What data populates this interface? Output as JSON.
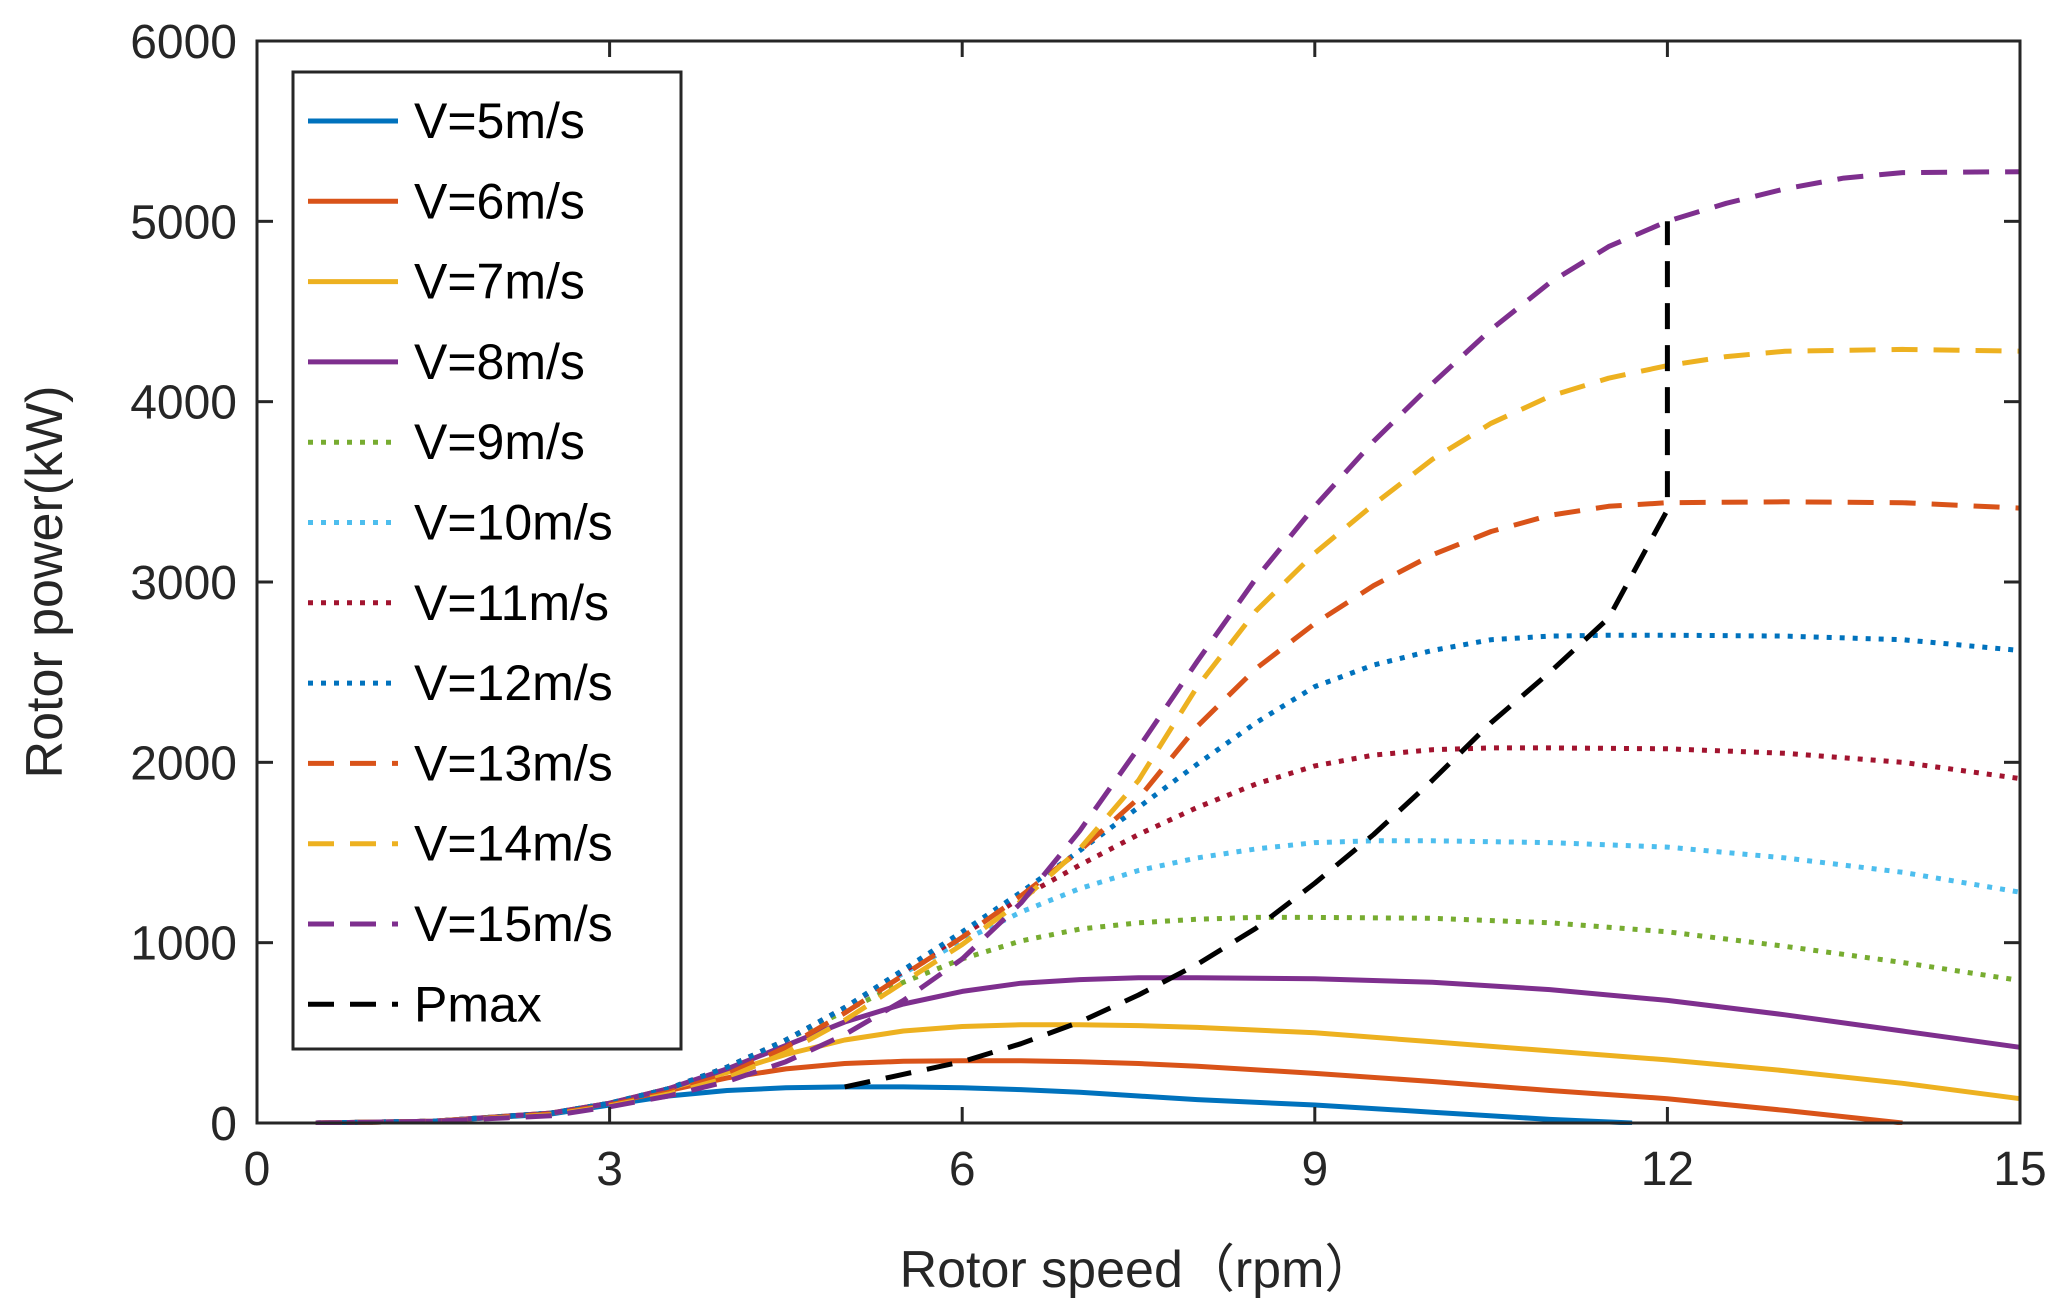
{
  "chart_data": {
    "type": "line",
    "title": "",
    "xlabel": "Rotor speed（rpm）",
    "ylabel": "Rotor power(kW)",
    "xlim": [
      0,
      15
    ],
    "ylim": [
      0,
      6000
    ],
    "xticks": [
      0,
      3,
      6,
      9,
      12,
      15
    ],
    "yticks": [
      0,
      1000,
      2000,
      3000,
      4000,
      5000,
      6000
    ],
    "grid": false,
    "legend_position": "top-left",
    "series": [
      {
        "name": "V=5m/s",
        "color": "#0072BD",
        "style": "solid",
        "x": [
          0.5,
          1.5,
          2.5,
          3,
          3.5,
          4,
          4.5,
          5,
          5.5,
          6,
          6.5,
          7,
          7.5,
          8,
          9,
          10,
          11,
          11.7
        ],
        "y": [
          0,
          10,
          50,
          100,
          150,
          180,
          195,
          200,
          200,
          195,
          185,
          170,
          150,
          130,
          100,
          60,
          20,
          0
        ]
      },
      {
        "name": "V=6m/s",
        "color": "#D95319",
        "style": "solid",
        "x": [
          0.5,
          1.5,
          2.5,
          3,
          3.5,
          4,
          4.5,
          5,
          5.5,
          6,
          6.5,
          7,
          7.5,
          8,
          9,
          10,
          11,
          12,
          13,
          14
        ],
        "y": [
          0,
          10,
          55,
          110,
          180,
          250,
          300,
          330,
          342,
          345,
          345,
          340,
          330,
          315,
          275,
          230,
          180,
          135,
          70,
          0
        ]
      },
      {
        "name": "V=7m/s",
        "color": "#EDB120",
        "style": "solid",
        "x": [
          0.5,
          1.5,
          2.5,
          3,
          3.5,
          4,
          4.5,
          5,
          5.5,
          6,
          6.5,
          7,
          7.5,
          8,
          9,
          10,
          11,
          12,
          13,
          14,
          15
        ],
        "y": [
          0,
          10,
          55,
          110,
          190,
          280,
          380,
          460,
          510,
          535,
          545,
          545,
          540,
          530,
          500,
          450,
          400,
          350,
          290,
          220,
          135
        ]
      },
      {
        "name": "V=8m/s",
        "color": "#7E2F8E",
        "style": "solid",
        "x": [
          0.5,
          1.5,
          2.5,
          3,
          3.5,
          4,
          4.5,
          5,
          5.5,
          6,
          6.5,
          7,
          7.5,
          8,
          9,
          10,
          11,
          12,
          13,
          14,
          15
        ],
        "y": [
          0,
          10,
          55,
          110,
          190,
          300,
          430,
          560,
          660,
          730,
          775,
          795,
          805,
          805,
          800,
          780,
          740,
          680,
          600,
          510,
          420
        ]
      },
      {
        "name": "V=9m/s",
        "color": "#77AC30",
        "style": "dotted",
        "x": [
          0.5,
          1.5,
          2.5,
          3,
          3.5,
          4,
          4.5,
          5,
          5.5,
          6,
          6.5,
          7,
          7.5,
          8,
          8.5,
          9,
          10,
          11,
          12,
          13,
          14,
          15
        ],
        "y": [
          0,
          10,
          55,
          110,
          190,
          310,
          460,
          620,
          780,
          910,
          1010,
          1075,
          1110,
          1130,
          1140,
          1140,
          1135,
          1110,
          1060,
          980,
          890,
          790
        ]
      },
      {
        "name": "V=10m/s",
        "color": "#4DBEEE",
        "style": "dotted",
        "x": [
          0.5,
          1.5,
          2.5,
          3,
          3.5,
          4,
          4.5,
          5,
          5.5,
          6,
          6.5,
          7,
          7.5,
          8,
          8.5,
          9,
          9.5,
          10,
          11,
          12,
          13,
          14,
          15
        ],
        "y": [
          0,
          10,
          55,
          110,
          190,
          310,
          460,
          640,
          830,
          1010,
          1170,
          1300,
          1400,
          1470,
          1520,
          1555,
          1565,
          1565,
          1555,
          1530,
          1470,
          1390,
          1280
        ]
      },
      {
        "name": "V=11m/s",
        "color": "#A2142F",
        "style": "dotted",
        "x": [
          0.5,
          1.5,
          2.5,
          3,
          3.5,
          4,
          4.5,
          5,
          5.5,
          6,
          6.5,
          7,
          7.5,
          8,
          8.5,
          9,
          9.5,
          10,
          10.5,
          11,
          12,
          13,
          14,
          15
        ],
        "y": [
          0,
          10,
          55,
          110,
          190,
          310,
          460,
          640,
          840,
          1040,
          1250,
          1430,
          1600,
          1750,
          1880,
          1980,
          2040,
          2070,
          2080,
          2080,
          2075,
          2050,
          2000,
          1910
        ]
      },
      {
        "name": "V=12m/s",
        "color": "#0072BD",
        "style": "dotted",
        "x": [
          0.5,
          1.5,
          2.5,
          3,
          3.5,
          4,
          4.5,
          5,
          5.5,
          6,
          6.5,
          7,
          7.5,
          8,
          8.5,
          9,
          9.5,
          10,
          10.5,
          11,
          11.5,
          12,
          13,
          14,
          15
        ],
        "y": [
          0,
          10,
          55,
          110,
          190,
          310,
          460,
          640,
          850,
          1060,
          1280,
          1510,
          1750,
          1990,
          2220,
          2420,
          2540,
          2620,
          2680,
          2700,
          2705,
          2705,
          2700,
          2680,
          2620
        ]
      },
      {
        "name": "V=13m/s",
        "color": "#D95319",
        "style": "dashed",
        "x": [
          0.5,
          1.5,
          2.5,
          3,
          3.5,
          4,
          4.5,
          5,
          5.5,
          6,
          6.5,
          7,
          7.5,
          8,
          8.5,
          9,
          9.5,
          10,
          10.5,
          11,
          11.5,
          12,
          13,
          14,
          15
        ],
        "y": [
          0,
          10,
          50,
          100,
          170,
          270,
          420,
          610,
          820,
          1030,
          1260,
          1510,
          1800,
          2200,
          2520,
          2770,
          2980,
          3150,
          3280,
          3370,
          3420,
          3440,
          3445,
          3440,
          3410
        ]
      },
      {
        "name": "V=14m/s",
        "color": "#EDB120",
        "style": "dashed",
        "x": [
          0.5,
          1.5,
          2.5,
          3,
          3.5,
          4,
          4.5,
          5,
          5.5,
          6,
          6.5,
          7,
          7.5,
          8,
          8.5,
          9,
          9.5,
          10,
          10.5,
          11,
          11.5,
          12,
          12.5,
          13,
          14,
          15
        ],
        "y": [
          0,
          10,
          45,
          95,
          160,
          250,
          390,
          570,
          780,
          990,
          1230,
          1520,
          1900,
          2420,
          2840,
          3160,
          3430,
          3680,
          3880,
          4030,
          4130,
          4200,
          4250,
          4280,
          4290,
          4280
        ]
      },
      {
        "name": "V=15m/s",
        "color": "#7E2F8E",
        "style": "dashed",
        "x": [
          0.5,
          1.5,
          2.5,
          3,
          3.5,
          4,
          4.5,
          5,
          5.5,
          6,
          6.5,
          7,
          7.5,
          8,
          8.5,
          9,
          9.5,
          10,
          10.5,
          11,
          11.5,
          12,
          12.5,
          13,
          13.5,
          14,
          15
        ],
        "y": [
          0,
          10,
          40,
          90,
          150,
          230,
          340,
          490,
          680,
          910,
          1220,
          1620,
          2080,
          2560,
          3020,
          3420,
          3780,
          4100,
          4400,
          4660,
          4860,
          5000,
          5100,
          5180,
          5240,
          5270,
          5275
        ]
      },
      {
        "name": "Pmax",
        "color": "#000000",
        "style": "dashed",
        "x": [
          5,
          5.5,
          6,
          6.5,
          7,
          7.5,
          8,
          8.5,
          9,
          9.5,
          10,
          10.5,
          11,
          11.5,
          12,
          12
        ],
        "y": [
          200,
          270,
          340,
          440,
          560,
          710,
          880,
          1080,
          1330,
          1600,
          1900,
          2220,
          2500,
          2800,
          3400,
          5000
        ]
      }
    ]
  }
}
